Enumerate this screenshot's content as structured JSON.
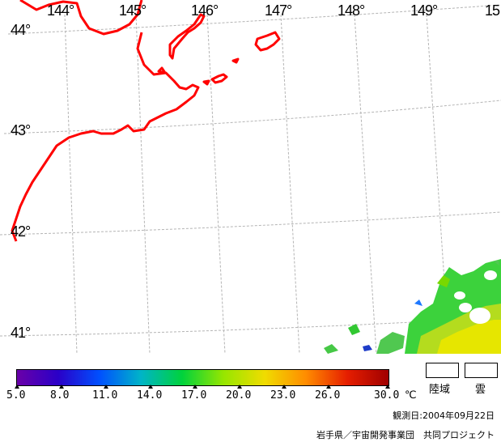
{
  "map": {
    "longitude_labels": [
      "144°",
      "145°",
      "146°",
      "147°",
      "148°",
      "149°",
      "15"
    ],
    "latitude_labels": [
      "44°",
      "43°",
      "42°",
      "41°"
    ],
    "coastline_color": "#ff0000",
    "grid_color": "#b4b4b4"
  },
  "colorbar": {
    "ticks": [
      "5.0",
      "8.0",
      "11.0",
      "14.0",
      "17.0",
      "20.0",
      "23.0",
      "26.0",
      "30.0"
    ],
    "unit": "℃",
    "range": [
      5.0,
      30.0
    ],
    "colors": [
      "#6a00a8",
      "#2a00c8",
      "#0050ff",
      "#00b4c8",
      "#00d23c",
      "#96e600",
      "#f0dc00",
      "#ff8c00",
      "#e61e00",
      "#a00000"
    ]
  },
  "legend": {
    "land_label": "陸域",
    "cloud_label": "雲"
  },
  "observation_date": "観測日:2004年09月22日",
  "credit": "岩手県／宇宙開発事業団　共同プロジェクト"
}
